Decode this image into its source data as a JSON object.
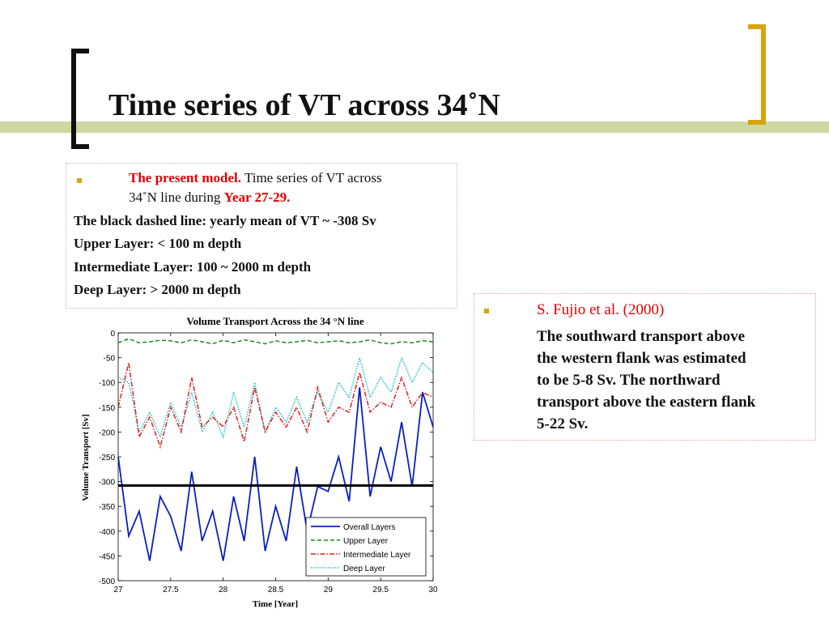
{
  "slide": {
    "title": "Time series of VT across 34˚N"
  },
  "left_box": {
    "bullet_red": "The present model.",
    "bullet_text_1": " Time series of VT across",
    "bullet_text_2": "34˚N line during ",
    "bullet_red_2": "Year 27-29.",
    "line_mean": "The black dashed line: yearly mean of VT ~ -308 Sv",
    "line_upper": "Upper Layer: < 100 m depth",
    "line_intermediate": "Intermediate Layer: 100 ~ 2000 m depth",
    "line_deep": "Deep Layer: > 2000 m depth"
  },
  "right_box": {
    "heading": "S. Fujio et al. (2000)",
    "lines": [
      "The southward transport above",
      "the western flank was estimated",
      "to be 5-8 Sv. The northward",
      "transport above the eastern flank",
      "5-22 Sv."
    ]
  },
  "colors": {
    "bullet": "#d9a30d",
    "accent_red": "#e00000",
    "band": "#cdd9a0",
    "overall": "#0b1fbf",
    "upper": "#1a8a1a",
    "intermediate": "#e02020",
    "deep": "#20c0c0"
  },
  "chart_data": {
    "type": "line",
    "title": "Volume Transport Across the 34 °N line",
    "xlabel": "Time [Year]",
    "ylabel": "Volume Transport [Sv]",
    "xlim": [
      27,
      30
    ],
    "ylim": [
      -500,
      0
    ],
    "xticks": [
      "27",
      "27.5",
      "28",
      "28.5",
      "29",
      "29.5",
      "30"
    ],
    "yticks": [
      "0",
      "-50",
      "-100",
      "-150",
      "-200",
      "-250",
      "-300",
      "-350",
      "-400",
      "-450",
      "-500"
    ],
    "legend_position": "bottom-right",
    "mean_line": -308,
    "x": [
      27.0,
      27.1,
      27.2,
      27.3,
      27.4,
      27.5,
      27.6,
      27.7,
      27.8,
      27.9,
      28.0,
      28.1,
      28.2,
      28.3,
      28.4,
      28.5,
      28.6,
      28.7,
      28.8,
      28.9,
      29.0,
      29.1,
      29.2,
      29.3,
      29.4,
      29.5,
      29.6,
      29.7,
      29.8,
      29.9,
      30.0
    ],
    "series": [
      {
        "name": "Overall Layers",
        "style": "solid",
        "values": [
          -250,
          -410,
          -360,
          -460,
          -330,
          -370,
          -440,
          -280,
          -420,
          -360,
          -460,
          -330,
          -420,
          -250,
          -440,
          -350,
          -420,
          -270,
          -400,
          -310,
          -320,
          -250,
          -340,
          -110,
          -330,
          -230,
          -300,
          -180,
          -310,
          -120,
          -190
        ]
      },
      {
        "name": "Upper Layer",
        "style": "dashed",
        "values": [
          -20,
          -12,
          -20,
          -18,
          -15,
          -16,
          -20,
          -14,
          -18,
          -22,
          -15,
          -20,
          -14,
          -18,
          -22,
          -16,
          -20,
          -18,
          -15,
          -20,
          -18,
          -16,
          -20,
          -18,
          -14,
          -20,
          -22,
          -18,
          -20,
          -16,
          -18
        ]
      },
      {
        "name": "Intermediate Layer",
        "style": "dashdot",
        "values": [
          -150,
          -60,
          -210,
          -170,
          -230,
          -150,
          -200,
          -90,
          -190,
          -170,
          -190,
          -150,
          -220,
          -110,
          -200,
          -160,
          -190,
          -150,
          -200,
          -110,
          -180,
          -150,
          -160,
          -80,
          -160,
          -140,
          -150,
          -90,
          -150,
          -120,
          -130
        ]
      },
      {
        "name": "Deep Layer",
        "style": "dotted",
        "values": [
          -90,
          -100,
          -200,
          -160,
          -210,
          -140,
          -190,
          -120,
          -200,
          -160,
          -210,
          -120,
          -190,
          -100,
          -200,
          -150,
          -180,
          -130,
          -180,
          -120,
          -160,
          -100,
          -130,
          -50,
          -130,
          -90,
          -120,
          -50,
          -100,
          -60,
          -80
        ]
      }
    ]
  }
}
